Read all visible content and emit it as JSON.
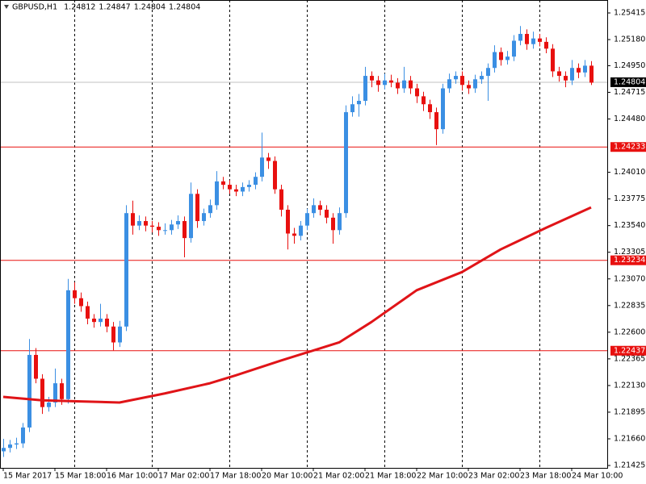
{
  "chart_data": {
    "type": "candlestick",
    "header": {
      "symbol": "GBPUSD,H1",
      "values": [
        1.24812,
        1.24847,
        1.24804,
        1.24804
      ]
    },
    "ylim": [
      1.21404,
      1.25529
    ],
    "yticks": [
      1.21425,
      {
        "value": 1.2166,
        "label": "1.21660"
      },
      1.21895,
      {
        "value": 1.2213,
        "label": "1.22130"
      },
      1.22365,
      {
        "value": 1.226,
        "label": "1.22600"
      },
      1.22835,
      {
        "value": 1.2307,
        "label": "1.23070"
      },
      1.23305,
      {
        "value": 1.2354,
        "label": "1.23540"
      },
      1.23775,
      {
        "value": 1.2401,
        "label": "1.24010"
      },
      {
        "value": 1.2448,
        "label": "1.24480"
      },
      1.24715,
      {
        "value": 1.2495,
        "label": "1.24950"
      },
      {
        "value": 1.2518,
        "label": "1.25180"
      },
      1.25415
    ],
    "xlim": [
      -0.5,
      93.5
    ],
    "xticks": [
      {
        "value": 0,
        "label": "15 Mar 2017"
      },
      {
        "value": 8,
        "label": "15 Mar 18:00"
      },
      {
        "value": 16,
        "label": "16 Mar 10:00"
      },
      {
        "value": 24,
        "label": "17 Mar 02:00"
      },
      {
        "value": 32,
        "label": "17 Mar 18:00"
      },
      {
        "value": 40,
        "label": "20 Mar 10:00"
      },
      {
        "value": 48,
        "label": "21 Mar 02:00"
      },
      {
        "value": 56,
        "label": "21 Mar 18:00"
      },
      {
        "value": 64,
        "label": "22 Mar 10:00"
      },
      {
        "value": 72,
        "label": "23 Mar 02:00"
      },
      {
        "value": 80,
        "label": "23 Mar 18:00"
      },
      {
        "value": 88,
        "label": "24 Mar 10:00"
      }
    ],
    "day_separators": [
      11,
      23,
      35,
      47,
      59,
      71,
      83
    ],
    "up_color": "#3b8fe3",
    "down_color": "#e8100f",
    "ohlc": [
      [
        1.2155,
        1.2166,
        1.215,
        1.2158
      ],
      [
        1.2158,
        1.2165,
        1.2154,
        1.2161
      ],
      [
        1.2161,
        1.2167,
        1.2157,
        1.2162
      ],
      [
        1.2162,
        1.218,
        1.2158,
        1.2176
      ],
      [
        1.2176,
        1.2254,
        1.2172,
        1.224
      ],
      [
        1.224,
        1.2246,
        1.2215,
        1.2219
      ],
      [
        1.2219,
        1.2223,
        1.2188,
        1.2194
      ],
      [
        1.2194,
        1.2203,
        1.219,
        1.2198
      ],
      [
        1.2198,
        1.2228,
        1.2194,
        1.2215
      ],
      [
        1.2215,
        1.2219,
        1.2196,
        1.2201
      ],
      [
        1.2201,
        1.2307,
        1.2197,
        1.2297
      ],
      [
        1.2297,
        1.2304,
        1.2285,
        1.229
      ],
      [
        1.229,
        1.2295,
        1.2278,
        1.2283
      ],
      [
        1.2283,
        1.2287,
        1.2267,
        1.2272
      ],
      [
        1.2272,
        1.2276,
        1.2264,
        1.2269
      ],
      [
        1.2269,
        1.2285,
        1.2265,
        1.2272
      ],
      [
        1.2272,
        1.2276,
        1.226,
        1.2265
      ],
      [
        1.2265,
        1.2269,
        1.2244,
        1.2251
      ],
      [
        1.2251,
        1.227,
        1.2247,
        1.2265
      ],
      [
        1.2265,
        1.2372,
        1.2261,
        1.2365
      ],
      [
        1.2365,
        1.2376,
        1.2346,
        1.2354
      ],
      [
        1.2354,
        1.2363,
        1.235,
        1.2358
      ],
      [
        1.2358,
        1.2362,
        1.2349,
        1.2354
      ],
      [
        1.2354,
        1.2358,
        1.2348,
        1.2353
      ],
      [
        1.2353,
        1.2357,
        1.2345,
        1.235
      ],
      [
        1.235,
        1.2356,
        1.2346,
        1.235
      ],
      [
        1.235,
        1.2359,
        1.2346,
        1.2355
      ],
      [
        1.2355,
        1.2363,
        1.2351,
        1.2358
      ],
      [
        1.2358,
        1.2362,
        1.2326,
        1.2343
      ],
      [
        1.2343,
        1.2392,
        1.2339,
        1.2382
      ],
      [
        1.2382,
        1.2386,
        1.2352,
        1.2358
      ],
      [
        1.2358,
        1.2369,
        1.2354,
        1.2365
      ],
      [
        1.2365,
        1.2377,
        1.2361,
        1.2372
      ],
      [
        1.2372,
        1.2402,
        1.2368,
        1.2393
      ],
      [
        1.2393,
        1.2397,
        1.2386,
        1.239
      ],
      [
        1.239,
        1.2394,
        1.2382,
        1.2386
      ],
      [
        1.2386,
        1.239,
        1.238,
        1.2384
      ],
      [
        1.2384,
        1.2392,
        1.238,
        1.2388
      ],
      [
        1.2388,
        1.2394,
        1.2384,
        1.239
      ],
      [
        1.239,
        1.2401,
        1.2386,
        1.2397
      ],
      [
        1.2397,
        1.2436,
        1.2393,
        1.2414
      ],
      [
        1.2414,
        1.2418,
        1.2404,
        1.2411
      ],
      [
        1.2411,
        1.2415,
        1.2382,
        1.2386
      ],
      [
        1.2386,
        1.239,
        1.2362,
        1.2368
      ],
      [
        1.2368,
        1.2372,
        1.2333,
        1.2347
      ],
      [
        1.2347,
        1.2352,
        1.2338,
        1.2345
      ],
      [
        1.2345,
        1.2358,
        1.2341,
        1.2354
      ],
      [
        1.2354,
        1.2369,
        1.235,
        1.2365
      ],
      [
        1.2365,
        1.2378,
        1.2361,
        1.2372
      ],
      [
        1.2372,
        1.2376,
        1.2363,
        1.2368
      ],
      [
        1.2368,
        1.2372,
        1.2356,
        1.2361
      ],
      [
        1.2361,
        1.2365,
        1.2338,
        1.235
      ],
      [
        1.235,
        1.237,
        1.2346,
        1.2365
      ],
      [
        1.2365,
        1.246,
        1.2361,
        1.2454
      ],
      [
        1.2454,
        1.2468,
        1.245,
        1.2461
      ],
      [
        1.2461,
        1.247,
        1.245,
        1.2464
      ],
      [
        1.2464,
        1.2494,
        1.246,
        1.2486
      ],
      [
        1.2486,
        1.249,
        1.2476,
        1.2482
      ],
      [
        1.2482,
        1.2486,
        1.2472,
        1.2478
      ],
      [
        1.2478,
        1.2488,
        1.2474,
        1.2482
      ],
      [
        1.2482,
        1.2487,
        1.2476,
        1.248
      ],
      [
        1.248,
        1.2484,
        1.247,
        1.2475
      ],
      [
        1.2475,
        1.2494,
        1.2471,
        1.2482
      ],
      [
        1.2482,
        1.2486,
        1.247,
        1.2475
      ],
      [
        1.2475,
        1.2479,
        1.2462,
        1.2468
      ],
      [
        1.2468,
        1.2472,
        1.2455,
        1.2461
      ],
      [
        1.2461,
        1.2465,
        1.2448,
        1.2454
      ],
      [
        1.2454,
        1.2458,
        1.2425,
        1.2439
      ],
      [
        1.2439,
        1.2479,
        1.2435,
        1.2475
      ],
      [
        1.2475,
        1.2488,
        1.2471,
        1.2483
      ],
      [
        1.2483,
        1.249,
        1.2479,
        1.2486
      ],
      [
        1.2486,
        1.249,
        1.2473,
        1.2478
      ],
      [
        1.2478,
        1.2482,
        1.247,
        1.2475
      ],
      [
        1.2475,
        1.2487,
        1.2471,
        1.2483
      ],
      [
        1.2483,
        1.249,
        1.2479,
        1.2486
      ],
      [
        1.2486,
        1.2497,
        1.2464,
        1.2493
      ],
      [
        1.2493,
        1.2513,
        1.2489,
        1.2507
      ],
      [
        1.2507,
        1.2511,
        1.2495,
        1.25
      ],
      [
        1.25,
        1.2508,
        1.2496,
        1.2503
      ],
      [
        1.2503,
        1.2522,
        1.2499,
        1.2517
      ],
      [
        1.2517,
        1.253,
        1.2513,
        1.2523
      ],
      [
        1.2523,
        1.2527,
        1.2509,
        1.2514
      ],
      [
        1.2514,
        1.2525,
        1.251,
        1.2519
      ],
      [
        1.2519,
        1.2523,
        1.2512,
        1.2516
      ],
      [
        1.2516,
        1.252,
        1.2506,
        1.251
      ],
      [
        1.251,
        1.2514,
        1.2485,
        1.249
      ],
      [
        1.249,
        1.2494,
        1.2481,
        1.2486
      ],
      [
        1.2486,
        1.249,
        1.2476,
        1.2482
      ],
      [
        1.2482,
        1.25,
        1.2478,
        1.2493
      ],
      [
        1.2493,
        1.2497,
        1.2484,
        1.2489
      ],
      [
        1.2489,
        1.25,
        1.2485,
        1.2495
      ],
      [
        1.2495,
        1.2499,
        1.2478,
        1.248
      ]
    ],
    "ma": {
      "color": "#e01418",
      "x": [
        0,
        6,
        12,
        18,
        25,
        32,
        36,
        43,
        52,
        57,
        64,
        71,
        77,
        84,
        91
      ],
      "values": [
        1.2203,
        1.22,
        1.2199,
        1.2198,
        1.2206,
        1.2215,
        1.2222,
        1.2235,
        1.2251,
        1.2269,
        1.2297,
        1.2313,
        1.2333,
        1.2352,
        1.237
      ]
    },
    "levels": {
      "color": "#e8100f",
      "values": [
        1.24233,
        1.23234,
        1.22437
      ]
    },
    "price": {
      "color": "#c0c0c0",
      "value": 1.24804
    }
  }
}
